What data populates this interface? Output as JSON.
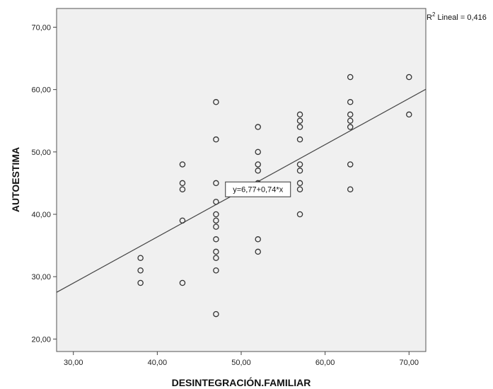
{
  "chart_data": {
    "type": "scatter",
    "xlabel": "DESINTEGRACIÓN.FAMILIAR",
    "ylabel": "AUTOESTIMA",
    "xlim": [
      28,
      72
    ],
    "ylim": [
      18,
      73
    ],
    "x_ticks": [
      "30,00",
      "40,00",
      "50,00",
      "60,00",
      "70,00"
    ],
    "y_ticks": [
      "20,00",
      "30,00",
      "40,00",
      "50,00",
      "60,00",
      "70,00"
    ],
    "grid": false,
    "background_color": "#f0f0f0",
    "points": [
      {
        "x": 38,
        "y": 33
      },
      {
        "x": 38,
        "y": 31
      },
      {
        "x": 38,
        "y": 29
      },
      {
        "x": 43,
        "y": 48
      },
      {
        "x": 43,
        "y": 45
      },
      {
        "x": 43,
        "y": 44
      },
      {
        "x": 43,
        "y": 39
      },
      {
        "x": 43,
        "y": 29
      },
      {
        "x": 47,
        "y": 58
      },
      {
        "x": 47,
        "y": 52
      },
      {
        "x": 47,
        "y": 45
      },
      {
        "x": 47,
        "y": 42
      },
      {
        "x": 47,
        "y": 40
      },
      {
        "x": 47,
        "y": 39
      },
      {
        "x": 47,
        "y": 38
      },
      {
        "x": 47,
        "y": 36
      },
      {
        "x": 47,
        "y": 34
      },
      {
        "x": 47,
        "y": 33
      },
      {
        "x": 47,
        "y": 31
      },
      {
        "x": 47,
        "y": 24
      },
      {
        "x": 52,
        "y": 54
      },
      {
        "x": 52,
        "y": 50
      },
      {
        "x": 52,
        "y": 48
      },
      {
        "x": 52,
        "y": 47
      },
      {
        "x": 52,
        "y": 45
      },
      {
        "x": 52,
        "y": 36
      },
      {
        "x": 52,
        "y": 34
      },
      {
        "x": 57,
        "y": 56
      },
      {
        "x": 57,
        "y": 55
      },
      {
        "x": 57,
        "y": 54
      },
      {
        "x": 57,
        "y": 52
      },
      {
        "x": 57,
        "y": 48
      },
      {
        "x": 57,
        "y": 47
      },
      {
        "x": 57,
        "y": 45
      },
      {
        "x": 57,
        "y": 44
      },
      {
        "x": 57,
        "y": 40
      },
      {
        "x": 63,
        "y": 62
      },
      {
        "x": 63,
        "y": 58
      },
      {
        "x": 63,
        "y": 56
      },
      {
        "x": 63,
        "y": 55
      },
      {
        "x": 63,
        "y": 54
      },
      {
        "x": 63,
        "y": 48
      },
      {
        "x": 63,
        "y": 44
      },
      {
        "x": 70,
        "y": 62
      },
      {
        "x": 70,
        "y": 56
      }
    ],
    "fit_line": {
      "intercept": 6.77,
      "slope": 0.74
    },
    "equation_label": "y=6,77+0,74*x",
    "r2_label_prefix": "R",
    "r2_label_sup": "2",
    "r2_label_suffix": " Lineal = 0,416",
    "equation_anchor": {
      "x": 52,
      "y": 44
    }
  }
}
